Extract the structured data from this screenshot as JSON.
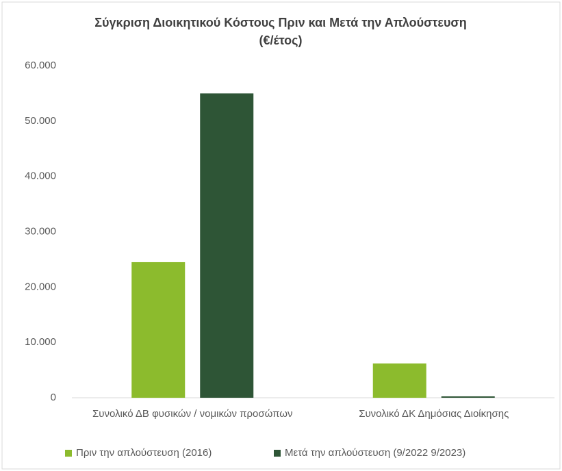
{
  "chart_data": {
    "type": "bar",
    "title": "Σύγκριση Διοικητικού Κόστους Πριν και Μετά την Απλούστευση (€/έτος)",
    "categories": [
      "Συνολικό ΔΒ φυσικών / νομικών προσώπων",
      "Συνολικό ΔΚ Δημόσιας Διοίκησης"
    ],
    "series": [
      {
        "name": "Πριν την απλούστευση (2016)",
        "color": "#8cbb2d",
        "values": [
          24500,
          6200
        ]
      },
      {
        "name": "Μετά την απλούστευση (9/2022 9/2023)",
        "color": "#2e5536",
        "values": [
          55000,
          250
        ]
      }
    ],
    "ylim": [
      0,
      60000
    ],
    "yticks": [
      {
        "value": 0,
        "label": "0"
      },
      {
        "value": 10000,
        "label": "10.000"
      },
      {
        "value": 20000,
        "label": "20.000"
      },
      {
        "value": 30000,
        "label": "30.000"
      },
      {
        "value": 40000,
        "label": "40.000"
      },
      {
        "value": 50000,
        "label": "50.000"
      },
      {
        "value": 60000,
        "label": "60.000"
      }
    ],
    "grid": false,
    "legend": "bottom"
  }
}
